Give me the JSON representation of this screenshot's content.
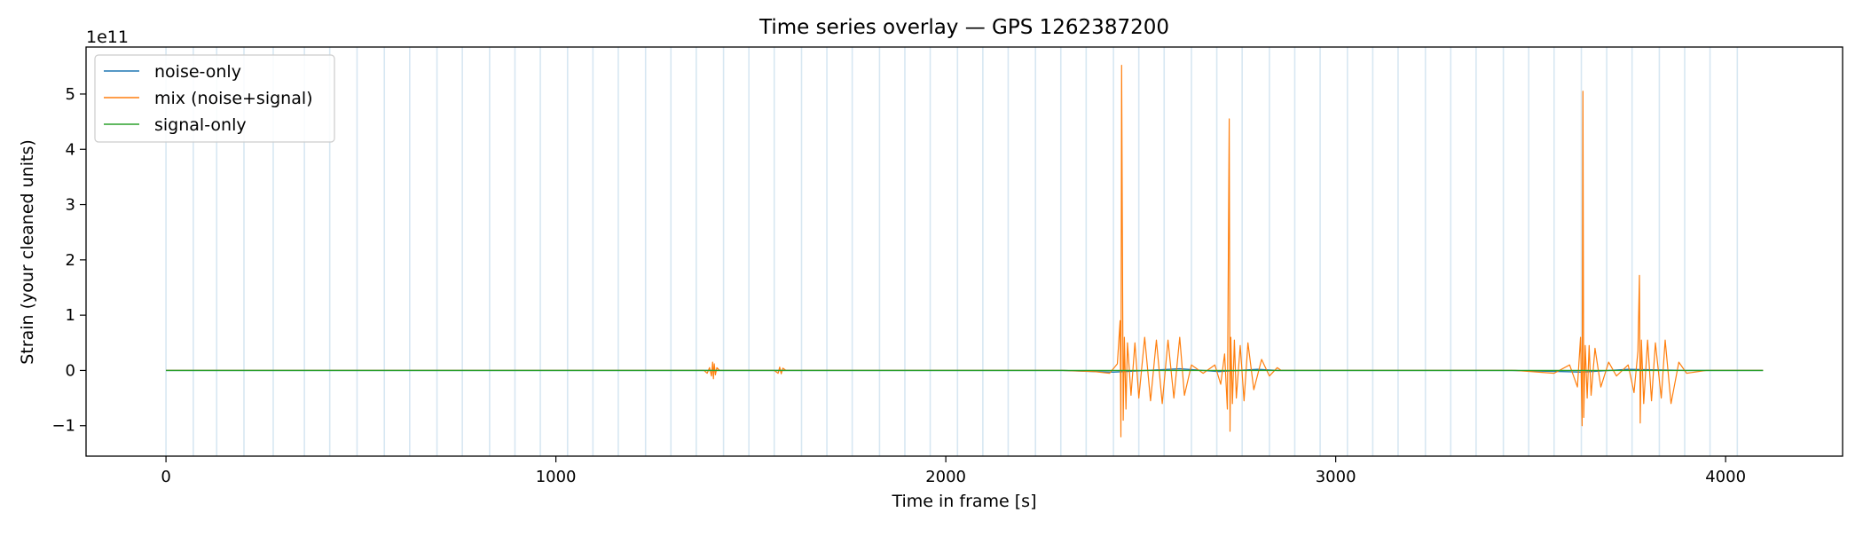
{
  "chart_data": {
    "type": "line",
    "title": "Time series overlay — GPS 1262387200",
    "xlabel": "Time in frame [s]",
    "ylabel": "Strain (your cleaned units)",
    "y_offset_label": "1e11",
    "xlim": [
      -205,
      4300
    ],
    "ylim": [
      -1.55,
      5.85
    ],
    "x_ticks": [
      0,
      1000,
      2000,
      3000,
      4000
    ],
    "x_tick_labels": [
      "0",
      "1000",
      "2000",
      "3000",
      "4000"
    ],
    "y_ticks": [
      -1,
      0,
      1,
      2,
      3,
      4,
      5
    ],
    "y_tick_labels": [
      "−1",
      "0",
      "1",
      "2",
      "3",
      "4",
      "5"
    ],
    "y_unit_scale": 100000000000.0,
    "grid": false,
    "legend_position": "upper-left",
    "segment_markers": {
      "color": "#c9dfee",
      "x": [
        0,
        70,
        130,
        200,
        275,
        355,
        420,
        490,
        560,
        625,
        695,
        760,
        830,
        895,
        960,
        1030,
        1095,
        1160,
        1230,
        1295,
        1360,
        1430,
        1495,
        1560,
        1630,
        1695,
        1760,
        1830,
        1895,
        1960,
        2030,
        2095,
        2160,
        2230,
        2295,
        2360,
        2430,
        2495,
        2560,
        2630,
        2695,
        2760,
        2830,
        2895,
        2960,
        3030,
        3095,
        3160,
        3230,
        3295,
        3360,
        3430,
        3495,
        3560,
        3630,
        3695,
        3760,
        3830,
        3895,
        3960,
        4030
      ]
    },
    "series": [
      {
        "name": "noise-only",
        "color": "#1f77b4",
        "x": [
          0,
          2300,
          2380,
          2430,
          2600,
          2700,
          2800,
          2850,
          3450,
          3580,
          3630,
          3750,
          3900,
          4096
        ],
        "y": [
          0,
          0,
          -0.02,
          -0.03,
          0.03,
          -0.02,
          0.02,
          0,
          0,
          -0.02,
          -0.03,
          0.02,
          0,
          0
        ]
      },
      {
        "name": "mix (noise+signal)",
        "color": "#ff7f0e",
        "x": [
          0,
          1380,
          1388,
          1394,
          1399,
          1402,
          1404,
          1406,
          1409,
          1413,
          1420,
          1430,
          1560,
          1570,
          1574,
          1578,
          1582,
          1590,
          2300,
          2380,
          2420,
          2440,
          2447,
          2449,
          2451,
          2455,
          2458,
          2462,
          2466,
          2475,
          2485,
          2495,
          2510,
          2525,
          2540,
          2555,
          2570,
          2585,
          2600,
          2612,
          2630,
          2660,
          2690,
          2705,
          2715,
          2722,
          2727,
          2729,
          2731,
          2735,
          2740,
          2745,
          2755,
          2765,
          2775,
          2790,
          2810,
          2830,
          2850,
          2860,
          3460,
          3560,
          3600,
          3620,
          3628,
          3632,
          3634,
          3636,
          3640,
          3645,
          3650,
          3655,
          3665,
          3680,
          3700,
          3720,
          3750,
          3765,
          3775,
          3779,
          3781,
          3784,
          3790,
          3800,
          3810,
          3820,
          3835,
          3845,
          3860,
          3880,
          3900,
          3950,
          4096
        ],
        "y": [
          0,
          0,
          -0.05,
          0.05,
          -0.1,
          0.15,
          -0.15,
          0.12,
          -0.08,
          0.05,
          0,
          0,
          0,
          -0.05,
          0.06,
          -0.06,
          0.04,
          0,
          0,
          -0.02,
          -0.05,
          0.12,
          0.9,
          -1.2,
          5.52,
          -0.9,
          0.6,
          -0.7,
          0.5,
          -0.45,
          0.5,
          -0.5,
          0.6,
          -0.55,
          0.55,
          -0.6,
          0.55,
          -0.5,
          0.6,
          -0.45,
          0.1,
          -0.05,
          0.1,
          -0.25,
          0.3,
          -0.7,
          4.55,
          -1.1,
          0.6,
          -0.6,
          0.55,
          -0.5,
          0.45,
          -0.55,
          0.5,
          -0.35,
          0.2,
          -0.1,
          0.05,
          0,
          0,
          -0.05,
          0.1,
          -0.3,
          0.6,
          -1.0,
          5.05,
          -0.85,
          0.45,
          -0.5,
          0.45,
          -0.45,
          0.4,
          -0.3,
          0.15,
          -0.1,
          0.1,
          -0.4,
          0.35,
          1.72,
          -0.95,
          0.55,
          -0.6,
          0.55,
          -0.55,
          0.5,
          -0.5,
          0.55,
          -0.6,
          0.15,
          -0.05,
          0,
          0
        ]
      },
      {
        "name": "signal-only",
        "color": "#2ca02c",
        "x": [
          0,
          4096
        ],
        "y": [
          0,
          0
        ]
      }
    ]
  }
}
